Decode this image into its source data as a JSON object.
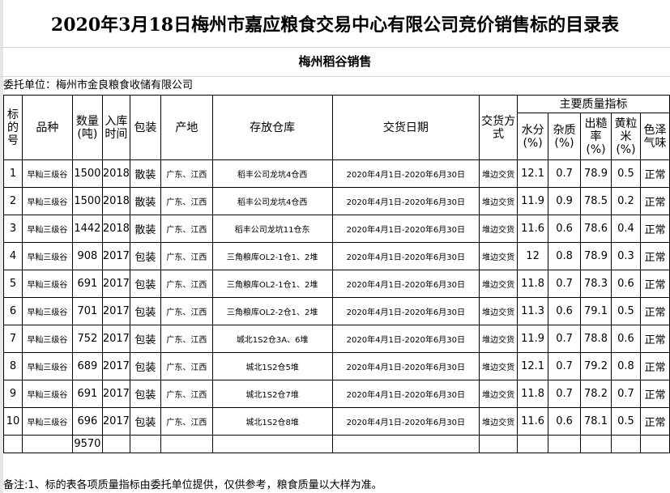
{
  "title": "2020年3月18日梅州市嘉应粮食交易中心有限公司竞价销售标的目录表",
  "subtitle": "梅州稻谷销售",
  "entrust": "委托单位：梅州市金良粮食收储有限公司",
  "headers": {
    "no": "标的号",
    "variety": "品种",
    "qty": "数量(吨)",
    "year": "入库时间",
    "pack": "包装",
    "origin": "产地",
    "store": "存放仓库",
    "date": "交货日期",
    "mode": "交货方式",
    "quality": "主要质量指标",
    "moisture": "水分(%)",
    "impurity": "杂质(%)",
    "yield": "出糙率(%)",
    "yellow": "黄粒米(%)",
    "color": "色泽气味"
  },
  "rows": [
    {
      "no": "1",
      "variety": "早籼三级谷",
      "qty": "1500",
      "year": "2018",
      "pack": "散装",
      "origin": "广东、江西",
      "store": "稻丰公司龙坑4仓西",
      "date": "2020年4月1日-2020年6月30日",
      "mode": "堆边交货",
      "moisture": "12.1",
      "impurity": "0.7",
      "yield": "78.9",
      "yellow": "0.5",
      "color": "正常"
    },
    {
      "no": "2",
      "variety": "早籼三级谷",
      "qty": "1500",
      "year": "2018",
      "pack": "散装",
      "origin": "广东、江西",
      "store": "稻丰公司龙坑4仓西",
      "date": "2020年4月1日-2020年6月30日",
      "mode": "堆边交货",
      "moisture": "11.9",
      "impurity": "0.9",
      "yield": "78.5",
      "yellow": "0.2",
      "color": "正常"
    },
    {
      "no": "3",
      "variety": "早籼三级谷",
      "qty": "1442",
      "year": "2018",
      "pack": "散装",
      "origin": "广东、江西",
      "store": "稻丰公司龙坑11仓东",
      "date": "2020年4月1日-2020年6月30日",
      "mode": "堆边交货",
      "moisture": "11.6",
      "impurity": "0.6",
      "yield": "78.6",
      "yellow": "0.4",
      "color": "正常"
    },
    {
      "no": "4",
      "variety": "早籼三级谷",
      "qty": "908",
      "year": "2017",
      "pack": "包装",
      "origin": "广东、江西",
      "store": "三角粮库OL2-1仓1、2堆",
      "date": "2020年4月1日-2020年6月30日",
      "mode": "堆边交货",
      "moisture": "12",
      "impurity": "0.8",
      "yield": "78.9",
      "yellow": "0.3",
      "color": "正常"
    },
    {
      "no": "5",
      "variety": "早籼三级谷",
      "qty": "691",
      "year": "2017",
      "pack": "包装",
      "origin": "广东、江西",
      "store": "三角粮库OL2-1仓1、2堆",
      "date": "2020年4月1日-2020年6月30日",
      "mode": "堆边交货",
      "moisture": "11.8",
      "impurity": "0.7",
      "yield": "78.3",
      "yellow": "0.6",
      "color": "正常"
    },
    {
      "no": "6",
      "variety": "早籼三级谷",
      "qty": "701",
      "year": "2017",
      "pack": "包装",
      "origin": "广东、江西",
      "store": "三角粮库OL2-2仓1、2堆",
      "date": "2020年4月1日-2020年6月30日",
      "mode": "堆边交货",
      "moisture": "11.3",
      "impurity": "0.6",
      "yield": "79.1",
      "yellow": "0.5",
      "color": "正常"
    },
    {
      "no": "7",
      "variety": "早籼三级谷",
      "qty": "752",
      "year": "2017",
      "pack": "包装",
      "origin": "广东、江西",
      "store": "城北1S2仓3A、6堆",
      "date": "2020年4月1日-2020年6月30日",
      "mode": "堆边交货",
      "moisture": "11.9",
      "impurity": "0.7",
      "yield": "78.8",
      "yellow": "0.6",
      "color": "正常"
    },
    {
      "no": "8",
      "variety": "早籼三级谷",
      "qty": "689",
      "year": "2017",
      "pack": "包装",
      "origin": "广东、江西",
      "store": "城北1S2仓5堆",
      "date": "2020年4月1日-2020年6月30日",
      "mode": "堆边交货",
      "moisture": "12.1",
      "impurity": "0.7",
      "yield": "79.2",
      "yellow": "0.8",
      "color": "正常"
    },
    {
      "no": "9",
      "variety": "早籼三级谷",
      "qty": "691",
      "year": "2017",
      "pack": "包装",
      "origin": "广东、江西",
      "store": "城北1S2仓7堆",
      "date": "2020年4月1日-2020年6月30日",
      "mode": "堆边交货",
      "moisture": "11.8",
      "impurity": "0.7",
      "yield": "78.2",
      "yellow": "0.7",
      "color": "正常"
    },
    {
      "no": "10",
      "variety": "早籼三级谷",
      "qty": "696",
      "year": "2017",
      "pack": "包装",
      "origin": "广东、江西",
      "store": "城北1S2仓8堆",
      "date": "2020年4月1日-2020年6月30日",
      "mode": "堆边交货",
      "moisture": "11.6",
      "impurity": "0.6",
      "yield": "78.1",
      "yellow": "0.5",
      "color": "正常"
    }
  ],
  "total_qty": "9570",
  "note": "备注:1、标的表各项质量指标由委托单位提供，仅供参考，粮食质量以大样为准。"
}
